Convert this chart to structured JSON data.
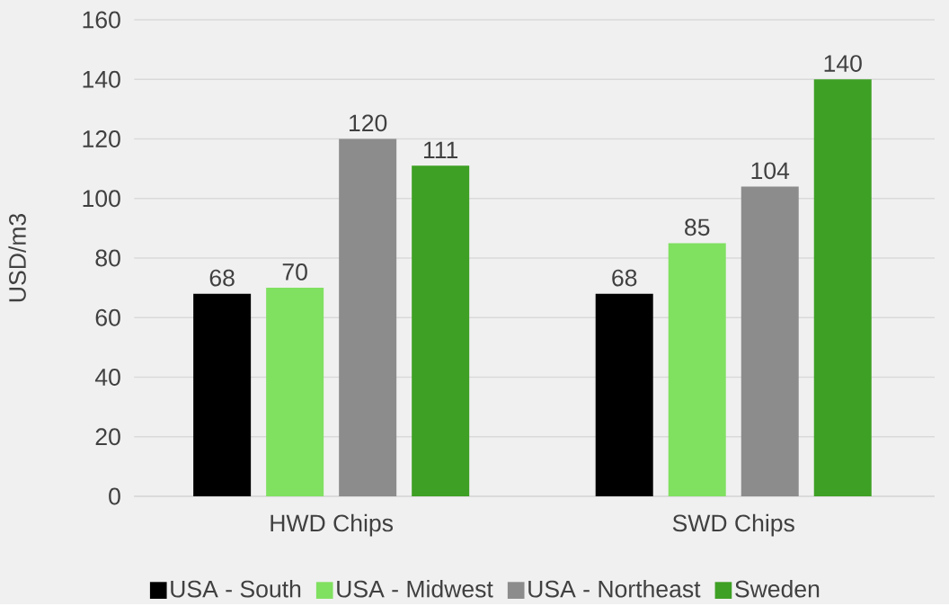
{
  "chart_data": {
    "type": "bar",
    "ylabel": "USD/m3",
    "categories": [
      "HWD Chips",
      "SWD Chips"
    ],
    "series": [
      {
        "name": "USA - South",
        "color": "#000000",
        "values": [
          68,
          68
        ]
      },
      {
        "name": "USA - Midwest",
        "color": "#80e060",
        "values": [
          70,
          85
        ]
      },
      {
        "name": "USA - Northeast",
        "color": "#8c8c8c",
        "values": [
          120,
          104
        ]
      },
      {
        "name": "Sweden",
        "color": "#3ea024",
        "values": [
          111,
          140
        ]
      }
    ],
    "ylim": [
      0,
      160
    ],
    "yticks": [
      0,
      20,
      40,
      60,
      80,
      100,
      120,
      140,
      160
    ],
    "grid": "y",
    "legend": "bottom",
    "data_labels": true
  }
}
